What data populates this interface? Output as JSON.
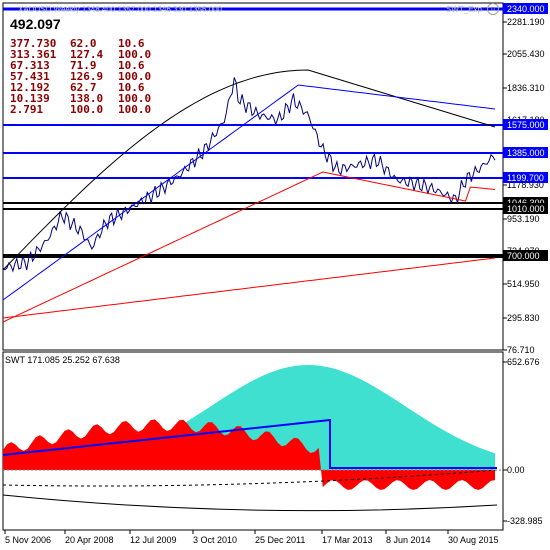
{
  "header": {
    "symbol_strip": "XAUUSD,Weekly 1348.400 1357.000 1346.330 1356.000",
    "indicator_tag": "SWT_Exp",
    "big_value": "492.097"
  },
  "stats": [
    [
      "377.730",
      "62.0",
      "10.6"
    ],
    [
      "313.361",
      "127.4",
      "100.0"
    ],
    [
      "67.313",
      "71.9",
      "10.6"
    ],
    [
      "57.431",
      "126.9",
      "100.0"
    ],
    [
      "12.192",
      "62.7",
      "10.6"
    ],
    [
      "10.139",
      "138.0",
      "100.0"
    ],
    [
      "2.791",
      "100.0",
      "100.0"
    ]
  ],
  "price_axis": [
    "2281.190",
    "2055.430",
    "1836.310",
    "1617.180",
    "1398.060",
    "1178.930",
    "953.190",
    "734.070",
    "514.950",
    "295.830",
    "76.710"
  ],
  "price_levels": [
    {
      "value": "2340.000",
      "color": "#0000ff"
    },
    {
      "value": "1575.000",
      "color": "#0000ff"
    },
    {
      "value": "1385.000",
      "color": "#0000ff"
    },
    {
      "value": "1199.700",
      "color": "#0000ff"
    },
    {
      "value": "1046.300",
      "color": "#000000"
    },
    {
      "value": "1010.000",
      "color": "#000000"
    },
    {
      "value": "700.000",
      "color": "#000000"
    }
  ],
  "sub_window": {
    "title": "SWT 171.085 25.252 67.638",
    "axis": [
      "652.676",
      "0.00",
      "-328.985"
    ]
  },
  "date_axis": [
    "5 Nov 2006",
    "20 Apr 2008",
    "12 Jul 2009",
    "3 Oct 2010",
    "25 Dec 2011",
    "17 Mar 2013",
    "8 Jun 2014",
    "30 Aug 2015"
  ],
  "colors": {
    "price_line": "#000080",
    "ma_fast": "#000000",
    "ma_slow": "#0000ff",
    "ma_red": "#ff0000",
    "teal_area": "#40e0d0",
    "red_area": "#ff0000",
    "blue_area": "#6495ed"
  }
}
